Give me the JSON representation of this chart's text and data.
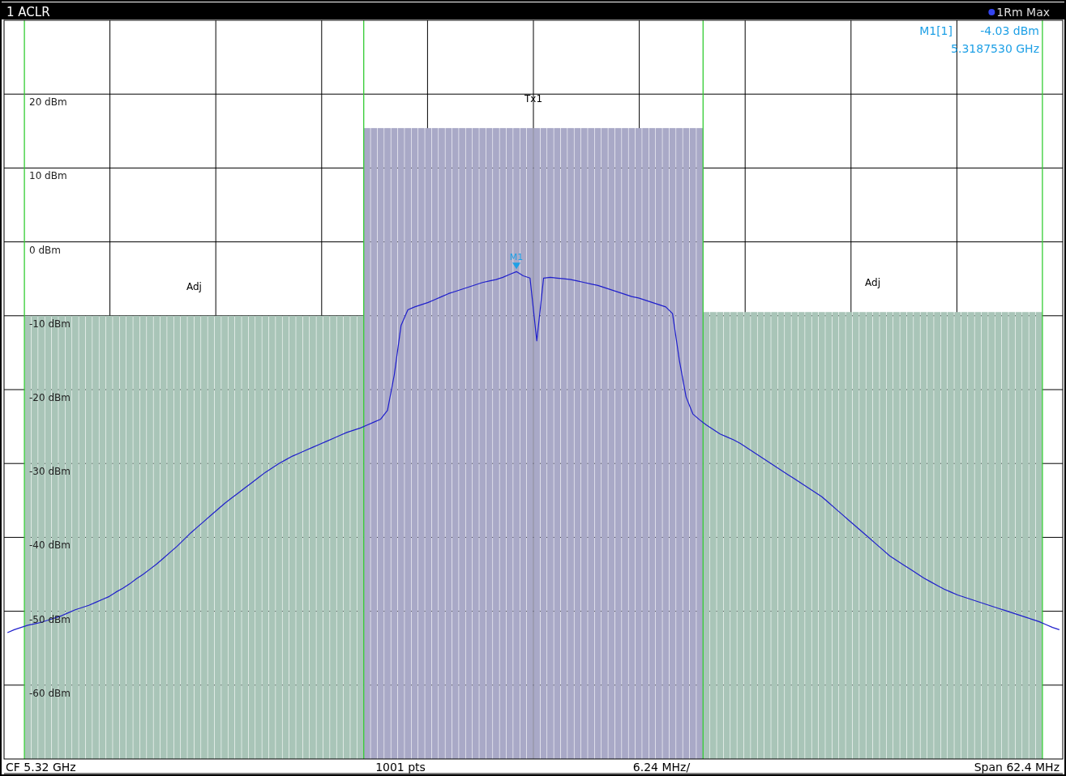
{
  "chart_data": {
    "type": "line",
    "title": "1 ACLR",
    "categories": [
      null,
      null,
      null,
      null,
      null,
      null,
      null,
      null,
      null,
      null,
      null,
      null,
      null,
      null,
      null,
      null,
      null,
      null,
      null,
      null,
      null,
      null,
      null,
      null,
      null,
      null,
      null,
      null,
      null,
      null,
      null,
      null,
      null,
      null,
      null,
      null,
      null,
      null,
      null,
      null,
      null,
      null,
      null,
      null,
      null,
      null,
      null,
      null,
      null,
      null,
      null,
      null,
      null,
      null,
      null,
      null,
      null,
      null,
      null,
      null,
      null,
      null,
      null,
      null,
      null,
      null,
      null,
      null,
      null,
      null,
      null,
      null,
      null,
      null,
      null,
      null,
      null,
      null,
      null,
      null,
      null,
      null,
      null,
      null,
      null,
      null,
      null,
      null,
      null,
      null,
      null,
      null,
      null,
      null,
      null,
      null,
      null,
      null,
      null,
      null,
      null,
      null,
      null,
      null,
      null,
      null,
      null,
      null,
      null,
      null,
      null,
      null,
      null,
      null,
      null,
      null,
      null,
      null,
      null,
      null,
      null,
      null,
      null,
      null,
      null,
      null,
      null,
      null,
      null,
      null,
      null,
      null,
      null,
      null,
      null,
      null,
      null,
      null,
      null,
      null,
      null,
      null,
      null,
      null,
      null,
      null,
      null,
      null,
      null,
      null,
      null,
      null,
      null,
      null,
      null,
      null
    ],
    "ylim": [
      -70,
      30
    ],
    "yticks": [
      {
        "value": 20,
        "label": "20 dBm"
      },
      {
        "value": 10,
        "label": "10 dBm"
      },
      {
        "value": 0,
        "label": "0 dBm"
      },
      {
        "value": -10,
        "label": "-10 dBm"
      },
      {
        "value": -20,
        "label": "-20 dBm"
      },
      {
        "value": -30,
        "label": "-30 dBm"
      },
      {
        "value": -40,
        "label": "-40 dBm"
      },
      {
        "value": -50,
        "label": "-50 dBm"
      },
      {
        "value": -60,
        "label": "-60 dBm"
      }
    ],
    "grid": true,
    "series": [
      {
        "type": "bar",
        "name": "Adj",
        "color": "#a9c5b8",
        "values": [
          null,
          null,
          null,
          60,
          60,
          60,
          60,
          60,
          60,
          60,
          60,
          60,
          60,
          60,
          60,
          60,
          60,
          60,
          60,
          60,
          60,
          60,
          60,
          60,
          60,
          60,
          60,
          60,
          60,
          60,
          60,
          60,
          60,
          60,
          60,
          60,
          60,
          60,
          60,
          60,
          60,
          60,
          60,
          60,
          60,
          60,
          60,
          60,
          60,
          60,
          60,
          60,
          60,
          null,
          null,
          null,
          null,
          null,
          null,
          null,
          null,
          null,
          null,
          null,
          null,
          null,
          null,
          null,
          null,
          null,
          null,
          null,
          null,
          null,
          null,
          null,
          null,
          null,
          null,
          null,
          null,
          null,
          null,
          null,
          null,
          null,
          null,
          null,
          null,
          null,
          null,
          null,
          null,
          null,
          null,
          null,
          null,
          null,
          null,
          null,
          null,
          null,
          null,
          null,
          null,
          null,
          null,
          null,
          null,
          null,
          null,
          null,
          null,
          null,
          null,
          null,
          null,
          null,
          null,
          null,
          null,
          null,
          null,
          null,
          null,
          null,
          null,
          null,
          null,
          null,
          null,
          null,
          null,
          null,
          null,
          null,
          null,
          null,
          null,
          null,
          null,
          null,
          null,
          null,
          null,
          null,
          null,
          null,
          null,
          null,
          null,
          null,
          null,
          null,
          null,
          null
        ],
        "base": [
          null,
          null,
          null,
          -70,
          -70,
          -70,
          -70,
          -70,
          -70,
          -70,
          -70,
          -70,
          -70,
          -70,
          -70,
          -70,
          -70,
          -70,
          -70,
          -70,
          -70,
          -70,
          -70,
          -70,
          -70,
          -70,
          -70,
          -70,
          -70,
          -70,
          -70,
          -70,
          -70,
          -70,
          -70,
          -70,
          -70,
          -70,
          -70,
          -70,
          -70,
          -70,
          -70,
          -70,
          -70,
          -70,
          -70,
          -70,
          -70,
          -70,
          -70,
          -70,
          -70,
          null,
          null,
          null,
          null,
          null,
          null,
          null,
          null,
          null,
          null,
          null,
          null,
          null,
          null,
          null,
          null,
          null,
          null,
          null,
          null,
          null,
          null,
          null,
          null,
          null,
          null,
          null,
          null,
          null,
          null,
          null,
          null,
          null,
          null,
          null,
          null,
          null,
          null,
          null,
          null,
          null,
          null,
          null,
          null,
          null,
          null,
          null,
          null,
          null,
          null,
          null,
          null,
          null,
          null,
          null,
          null,
          null,
          null,
          null,
          null,
          null,
          null,
          null,
          null,
          null,
          null,
          null,
          null,
          null,
          null,
          null,
          null,
          null,
          null,
          null,
          null,
          null,
          null,
          null,
          null,
          null,
          null,
          null,
          null,
          null,
          null,
          null,
          null,
          null,
          null,
          null,
          null,
          null,
          null,
          null,
          null,
          null,
          null,
          null,
          null,
          null,
          null,
          null
        ]
      },
      {
        "type": "bar",
        "name": "Tx1",
        "color": "#a9a9c7",
        "values": [
          null,
          null,
          null,
          null,
          null,
          null,
          null,
          null,
          null,
          null,
          null,
          null,
          null,
          null,
          null,
          null,
          null,
          null,
          null,
          null,
          null,
          null,
          null,
          null,
          null,
          null,
          null,
          null,
          null,
          null,
          null,
          null,
          null,
          null,
          null,
          null,
          null,
          null,
          null,
          null,
          null,
          null,
          null,
          null,
          null,
          null,
          null,
          null,
          null,
          null,
          null,
          null,
          null,
          85.4,
          85.4,
          85.4,
          85.4,
          85.4,
          85.4,
          85.4,
          85.4,
          85.4,
          85.4,
          85.4,
          85.4,
          85.4,
          85.4,
          85.4,
          85.4,
          85.4,
          85.4,
          85.4,
          85.4,
          85.4,
          85.4,
          85.4,
          85.4,
          85.4,
          85.4,
          85.4,
          85.4,
          85.4,
          85.4,
          85.4,
          85.4,
          85.4,
          85.4,
          85.4,
          85.4,
          85.4,
          85.4,
          85.4,
          85.4,
          85.4,
          85.4,
          85.4,
          85.4,
          85.4,
          85.4,
          85.4,
          85.4,
          85.4,
          85.4,
          null,
          null,
          null,
          null,
          null,
          null,
          null,
          null,
          null,
          null,
          null,
          null,
          null,
          null,
          null,
          null,
          null,
          null,
          null,
          null,
          null,
          null,
          null,
          null,
          null,
          null,
          null,
          null,
          null,
          null,
          null,
          null,
          null,
          null,
          null,
          null,
          null,
          null,
          null,
          null,
          null,
          null,
          null,
          null,
          null,
          null,
          null,
          null,
          null,
          null,
          null,
          null,
          null
        ],
        "base": [
          null,
          null,
          null,
          null,
          null,
          null,
          null,
          null,
          null,
          null,
          null,
          null,
          null,
          null,
          null,
          null,
          null,
          null,
          null,
          null,
          null,
          null,
          null,
          null,
          null,
          null,
          null,
          null,
          null,
          null,
          null,
          null,
          null,
          null,
          null,
          null,
          null,
          null,
          null,
          null,
          null,
          null,
          null,
          null,
          null,
          null,
          null,
          null,
          null,
          null,
          null,
          null,
          null,
          -70,
          -70,
          -70,
          -70,
          -70,
          -70,
          -70,
          -70,
          -70,
          -70,
          -70,
          -70,
          -70,
          -70,
          -70,
          -70,
          -70,
          -70,
          -70,
          -70,
          -70,
          -70,
          -70,
          -70,
          -70,
          -70,
          -70,
          -70,
          -70,
          -70,
          -70,
          -70,
          -70,
          -70,
          -70,
          -70,
          -70,
          -70,
          -70,
          -70,
          -70,
          -70,
          -70,
          -70,
          -70,
          -70,
          -70,
          -70,
          -70,
          -70,
          null,
          null,
          null,
          null,
          null,
          null,
          null,
          null,
          null,
          null,
          null,
          null,
          null,
          null,
          null,
          null,
          null,
          null,
          null,
          null,
          null,
          null,
          null,
          null,
          null,
          null,
          null,
          null,
          null,
          null,
          null,
          null,
          null,
          null,
          null,
          null,
          null,
          null,
          null,
          null,
          null,
          null,
          null,
          null,
          null,
          null,
          null,
          null,
          null,
          null,
          null,
          null,
          null
        ]
      },
      {
        "type": "bar",
        "name": "Adj",
        "color": "#a9c5b8",
        "values": [
          null,
          null,
          null,
          null,
          null,
          null,
          null,
          null,
          null,
          null,
          null,
          null,
          null,
          null,
          null,
          null,
          null,
          null,
          null,
          null,
          null,
          null,
          null,
          null,
          null,
          null,
          null,
          null,
          null,
          null,
          null,
          null,
          null,
          null,
          null,
          null,
          null,
          null,
          null,
          null,
          null,
          null,
          null,
          null,
          null,
          null,
          null,
          null,
          null,
          null,
          null,
          null,
          null,
          null,
          null,
          null,
          null,
          null,
          null,
          null,
          null,
          null,
          null,
          null,
          null,
          null,
          null,
          null,
          null,
          null,
          null,
          null,
          null,
          null,
          null,
          null,
          null,
          null,
          null,
          null,
          null,
          null,
          null,
          null,
          null,
          null,
          null,
          null,
          null,
          null,
          null,
          null,
          null,
          null,
          null,
          null,
          null,
          null,
          null,
          null,
          null,
          null,
          null,
          60.5,
          60.5,
          60.5,
          60.5,
          60.5,
          60.5,
          60.5,
          60.5,
          60.5,
          60.5,
          60.5,
          60.5,
          60.5,
          60.5,
          60.5,
          60.5,
          60.5,
          60.5,
          60.5,
          60.5,
          60.5,
          60.5,
          60.5,
          60.5,
          60.5,
          60.5,
          60.5,
          60.5,
          60.5,
          60.5,
          60.5,
          60.5,
          60.5,
          60.5,
          60.5,
          60.5,
          60.5,
          60.5,
          60.5,
          60.5,
          60.5,
          60.5,
          60.5,
          60.5,
          60.5,
          60.5,
          60.5,
          60.5,
          60.5,
          60.5,
          null,
          null,
          null
        ],
        "base": [
          null,
          null,
          null,
          null,
          null,
          null,
          null,
          null,
          null,
          null,
          null,
          null,
          null,
          null,
          null,
          null,
          null,
          null,
          null,
          null,
          null,
          null,
          null,
          null,
          null,
          null,
          null,
          null,
          null,
          null,
          null,
          null,
          null,
          null,
          null,
          null,
          null,
          null,
          null,
          null,
          null,
          null,
          null,
          null,
          null,
          null,
          null,
          null,
          null,
          null,
          null,
          null,
          null,
          null,
          null,
          null,
          null,
          null,
          null,
          null,
          null,
          null,
          null,
          null,
          null,
          null,
          null,
          null,
          null,
          null,
          null,
          null,
          null,
          null,
          null,
          null,
          null,
          null,
          null,
          null,
          null,
          null,
          null,
          null,
          null,
          null,
          null,
          null,
          null,
          null,
          null,
          null,
          null,
          null,
          null,
          null,
          null,
          null,
          null,
          null,
          null,
          null,
          null,
          -70,
          -70,
          -70,
          -70,
          -70,
          -70,
          -70,
          -70,
          -70,
          -70,
          -70,
          -70,
          -70,
          -70,
          -70,
          -70,
          -70,
          -70,
          -70,
          -70,
          -70,
          -70,
          -70,
          -70,
          -70,
          -70,
          -70,
          -70,
          -70,
          -70,
          -70,
          -70,
          -70,
          -70,
          -70,
          -70,
          -70,
          -70,
          -70,
          -70,
          -70,
          -70,
          -70,
          -70,
          -70,
          -70,
          -70,
          -70,
          -70,
          -70,
          null,
          null,
          null
        ]
      },
      {
        "color": "#1f1fcc",
        "values": [
          -52.9,
          -52.5,
          -52.2,
          -51.9,
          -51.7,
          -51.5,
          -51.2,
          -50.9,
          -50.6,
          -50.2,
          -49.8,
          -49.5,
          -49.2,
          -48.8,
          -48.4,
          -48,
          -47.4,
          -46.9,
          -46.3,
          -45.6,
          -45,
          -44.3,
          -43.6,
          -42.8,
          -42,
          -41.2,
          -40.3,
          -39.4,
          -38.6,
          -37.8,
          -37,
          -36.2,
          -35.4,
          -34.7,
          -34,
          -33.3,
          -32.6,
          -31.9,
          -31.2,
          -30.6,
          -30,
          -29.5,
          -29,
          -28.6,
          -28.2,
          -27.8,
          -27.4,
          -27,
          -26.6,
          -26.2,
          -25.8,
          -25.5,
          -25.2,
          -24.8,
          -24.4,
          -24,
          -22.8,
          -18,
          -11.3,
          -9.2,
          -8.8,
          -8.5,
          -8.2,
          -7.8,
          -7.4,
          -7,
          -6.7,
          -6.4,
          -6.1,
          -5.8,
          -5.5,
          -5.3,
          -5.1,
          -4.8,
          -4.4,
          -4.03,
          -4.6,
          -4.9,
          -13.4,
          -4.9,
          -4.8,
          -4.9,
          -5,
          -5.1,
          -5.3,
          -5.5,
          -5.7,
          -5.9,
          -6.2,
          -6.5,
          -6.8,
          -7.1,
          -7.4,
          -7.6,
          -7.9,
          -8.2,
          -8.5,
          -8.8,
          -9.7,
          -16,
          -21,
          -23.3,
          -24.1,
          -24.8,
          -25.4,
          -26,
          -26.4,
          -26.8,
          -27.3,
          -27.9,
          -28.5,
          -29.1,
          -29.7,
          -30.3,
          -30.9,
          -31.5,
          -32.1,
          -32.7,
          -33.3,
          -33.9,
          -34.5,
          -35.3,
          -36.1,
          -36.9,
          -37.7,
          -38.5,
          -39.3,
          -40.1,
          -40.9,
          -41.7,
          -42.5,
          -43.1,
          -43.7,
          -44.3,
          -44.9,
          -45.5,
          -46,
          -46.5,
          -47,
          -47.4,
          -47.8,
          -48.1,
          -48.4,
          -48.7,
          -49,
          -49.3,
          -49.6,
          -49.9,
          -50.2,
          -50.5,
          -50.8,
          -51.1,
          -51.4,
          -51.8,
          -52.2,
          -52.5
        ]
      }
    ],
    "annotations": [
      "1Rm Max",
      "M1[1]",
      "-4.03 dBm",
      "5.3187530 GHz",
      "CF 5.32 GHz",
      "1001 pts",
      "6.24 MHz/",
      "Span 62.4 MHz",
      {
        "text": "M1",
        "y": -4.03
      }
    ]
  }
}
